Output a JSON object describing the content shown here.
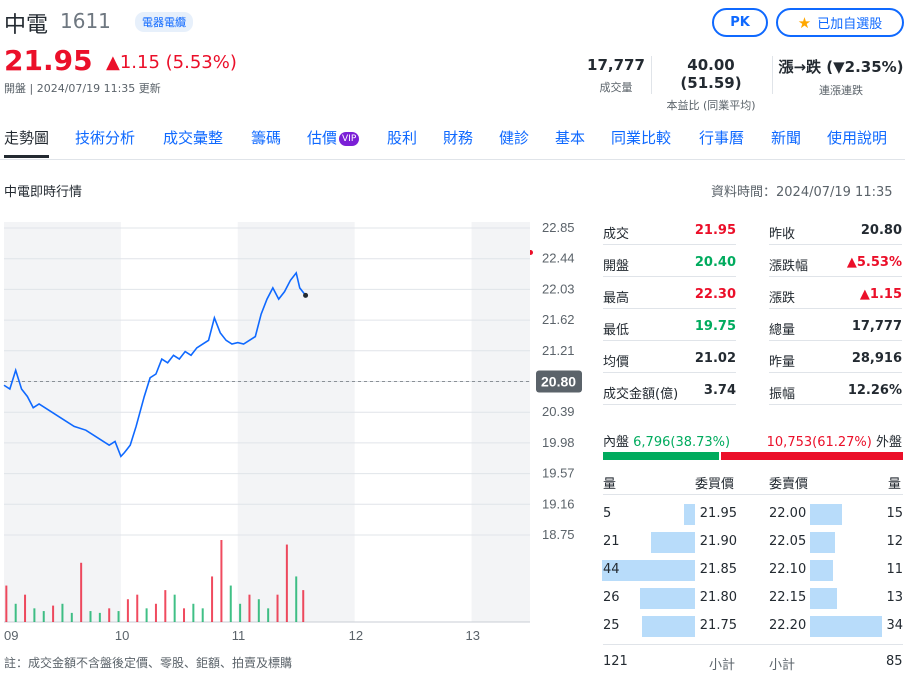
{
  "header": {
    "name": "中電",
    "code": "1611",
    "sector": "電器電纜",
    "price": "21.95",
    "change": "▲1.15 (5.53%)",
    "subline": "開盤 | 2024/07/19 11:35 更新",
    "pk_label": "PK",
    "fav_label": "已加自選股"
  },
  "stats": [
    {
      "value": "17,777",
      "label": "成交量",
      "color": "#232a31"
    },
    {
      "value": "40.00 (51.59)",
      "label": "本益比 (同業平均)",
      "color": "#232a31"
    },
    {
      "value": "漲→跌 (▼2.35%)",
      "label": "連漲連跌",
      "color": "#00ab5e"
    }
  ],
  "tabs": [
    "走勢圖",
    "技術分析",
    "成交彙整",
    "籌碼",
    "估價",
    "股利",
    "財務",
    "健診",
    "基本",
    "同業比較",
    "行事曆",
    "新聞",
    "使用說明"
  ],
  "vip_label": "VIP",
  "section_title": "中電即時行情",
  "data_time": "資料時間：2024/07/19 11:35",
  "footnote": "註：成交金額不含盤後定價、零股、鉅額、拍賣及標購",
  "quote_left": [
    {
      "k": "成交",
      "v": "21.95",
      "c": "#eb0f29"
    },
    {
      "k": "開盤",
      "v": "20.40",
      "c": "#00ab5e"
    },
    {
      "k": "最高",
      "v": "22.30",
      "c": "#eb0f29"
    },
    {
      "k": "最低",
      "v": "19.75",
      "c": "#00ab5e"
    },
    {
      "k": "均價",
      "v": "21.02",
      "c": "#232a31"
    },
    {
      "k": "成交金額(億)",
      "v": "3.74",
      "c": "#232a31"
    }
  ],
  "quote_right": [
    {
      "k": "昨收",
      "v": "20.80",
      "c": "#232a31"
    },
    {
      "k": "漲跌幅",
      "v": "▲5.53%",
      "c": "#eb0f29"
    },
    {
      "k": "漲跌",
      "v": "▲1.15",
      "c": "#eb0f29"
    },
    {
      "k": "總量",
      "v": "17,777",
      "c": "#232a31"
    },
    {
      "k": "昨量",
      "v": "28,916",
      "c": "#232a31"
    },
    {
      "k": "振幅",
      "v": "12.26%",
      "c": "#232a31"
    }
  ],
  "inner": {
    "label": "內盤",
    "value": "6,796(38.73%)",
    "share": 0.3873
  },
  "outer": {
    "label": "外盤",
    "value": "10,753(61.27%)",
    "share": 0.6127
  },
  "orderbook": {
    "h_qty": "量",
    "h_bid": "委買價",
    "h_ask": "委賣價",
    "bids": [
      {
        "qty": "5",
        "price": "21.95",
        "n": 5
      },
      {
        "qty": "21",
        "price": "21.90",
        "n": 21
      },
      {
        "qty": "44",
        "price": "21.85",
        "n": 44
      },
      {
        "qty": "26",
        "price": "21.80",
        "n": 26
      },
      {
        "qty": "25",
        "price": "21.75",
        "n": 25
      }
    ],
    "asks": [
      {
        "price": "22.00",
        "qty": "15",
        "n": 15
      },
      {
        "price": "22.05",
        "qty": "12",
        "n": 12
      },
      {
        "price": "22.10",
        "qty": "11",
        "n": 11
      },
      {
        "price": "22.15",
        "qty": "13",
        "n": 13
      },
      {
        "price": "22.20",
        "qty": "34",
        "n": 34
      }
    ],
    "bid_total": "121",
    "ask_total": "85",
    "subtotal_label": "小計"
  },
  "chart_data": {
    "type": "line",
    "x_ticks": [
      "09",
      "10",
      "11",
      "12",
      "13"
    ],
    "y_ticks": [
      22.85,
      22.44,
      22.03,
      21.62,
      21.21,
      20.8,
      20.39,
      19.98,
      19.57,
      19.16,
      18.75
    ],
    "y_tick_labels": [
      "22.85",
      "22.44",
      "22.03",
      "21.62",
      "21.21",
      "20.80",
      "20.39",
      "19.98",
      "19.57",
      "19.16",
      "18.75"
    ],
    "ylim": [
      18.75,
      22.85
    ],
    "previous_close": 20.8,
    "price_series": {
      "x_hours": [
        9.0,
        9.05,
        9.1,
        9.15,
        9.2,
        9.25,
        9.3,
        9.4,
        9.5,
        9.6,
        9.7,
        9.8,
        9.9,
        9.95,
        10.0,
        10.03,
        10.08,
        10.13,
        10.2,
        10.25,
        10.3,
        10.35,
        10.4,
        10.45,
        10.5,
        10.55,
        10.6,
        10.65,
        10.7,
        10.75,
        10.8,
        10.85,
        10.9,
        10.95,
        11.0,
        11.05,
        11.1,
        11.15,
        11.2,
        11.25,
        11.3,
        11.35,
        11.4,
        11.45,
        11.5,
        11.53,
        11.58
      ],
      "values": [
        20.75,
        20.7,
        20.95,
        20.7,
        20.6,
        20.45,
        20.5,
        20.4,
        20.3,
        20.2,
        20.15,
        20.05,
        19.95,
        20.0,
        19.8,
        19.85,
        19.95,
        20.2,
        20.6,
        20.85,
        20.9,
        21.1,
        21.05,
        21.15,
        21.1,
        21.2,
        21.15,
        21.25,
        21.3,
        21.35,
        21.65,
        21.45,
        21.35,
        21.3,
        21.32,
        21.3,
        21.35,
        21.4,
        21.7,
        21.9,
        22.05,
        21.9,
        22.0,
        22.15,
        22.25,
        22.05,
        21.95
      ]
    },
    "volume_series": {
      "x_hours": [
        9.02,
        9.1,
        9.18,
        9.26,
        9.34,
        9.42,
        9.5,
        9.58,
        9.66,
        9.74,
        9.82,
        9.9,
        9.98,
        10.06,
        10.14,
        10.22,
        10.3,
        10.38,
        10.46,
        10.54,
        10.62,
        10.7,
        10.78,
        10.86,
        10.94,
        11.02,
        11.1,
        11.18,
        11.26,
        11.34,
        11.42,
        11.5,
        11.56
      ],
      "values": [
        400,
        200,
        300,
        150,
        120,
        180,
        200,
        100,
        650,
        120,
        100,
        150,
        120,
        250,
        300,
        150,
        200,
        350,
        300,
        150,
        200,
        150,
        500,
        900,
        400,
        200,
        300,
        250,
        150,
        300,
        850,
        500,
        350
      ],
      "up": [
        true,
        false,
        true,
        false,
        false,
        true,
        false,
        false,
        true,
        false,
        false,
        true,
        false,
        true,
        true,
        false,
        true,
        true,
        false,
        true,
        false,
        false,
        true,
        true,
        false,
        false,
        true,
        false,
        false,
        true,
        true,
        false,
        true
      ]
    }
  },
  "colors": {
    "up": "#eb0f29",
    "down": "#00ab5e",
    "line": "#0f69ff",
    "accent": "#0f69ff"
  }
}
